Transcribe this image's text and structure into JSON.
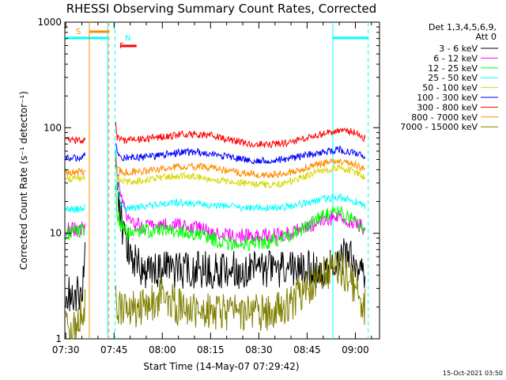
{
  "chart_data": {
    "type": "line",
    "title": "RHESSI Observing Summary Count Rates, Corrected",
    "xlabel": "Start Time (14-May-07 07:29:42)",
    "ylabel": "Corrected Count Rate (s⁻¹ detector⁻¹)",
    "yscale": "log",
    "ylim": [
      1,
      1000
    ],
    "xlim": [
      "07:29:42",
      "09:07:30"
    ],
    "x_ticks": [
      "07:30",
      "07:45",
      "08:00",
      "08:15",
      "08:30",
      "08:45",
      "09:00"
    ],
    "y_ticks": [
      "1",
      "10",
      "100",
      "1000"
    ],
    "grid": false,
    "legend_header": [
      "Det 1,3,4,5,6,9,",
      "Att 0"
    ],
    "legend_position": "right",
    "footer": "15-Oct-2021 03:50",
    "x_unit": "minutes from 07:30",
    "series": [
      {
        "name": "3 - 6 keV",
        "color": "#000000",
        "x": [
          0,
          5,
          6,
          10,
          13,
          15.5,
          16,
          17,
          18,
          20,
          22,
          25,
          30,
          40,
          50,
          55,
          60,
          65,
          70,
          75,
          80,
          85,
          86,
          90,
          92,
          93
        ],
        "y": [
          2.6,
          2.8,
          5.5,
          null,
          null,
          50,
          25,
          15,
          10,
          7,
          5,
          4.5,
          4.5,
          4.5,
          4.5,
          4.5,
          4.5,
          4.5,
          4.5,
          4.5,
          4.5,
          5.5,
          6,
          5.5,
          4,
          3
        ]
      },
      {
        "name": "6 - 12 keV",
        "color": "#ff00ff",
        "x": [
          0,
          5,
          6,
          10,
          13,
          15.5,
          16,
          17,
          18,
          19,
          20,
          22,
          25,
          30,
          35,
          40,
          45,
          50,
          55,
          60,
          65,
          70,
          75,
          80,
          85,
          90,
          93
        ],
        "y": [
          11,
          11,
          12,
          null,
          null,
          60,
          35,
          25,
          18,
          15,
          13,
          12,
          11.5,
          12,
          12,
          11.5,
          10.5,
          9.5,
          9.5,
          9.5,
          9.5,
          10,
          11.5,
          13.5,
          14,
          12.5,
          11
        ]
      },
      {
        "name": "12 - 25 keV",
        "color": "#00ff00",
        "x": [
          0,
          5,
          6,
          10,
          13,
          15.5,
          16,
          17,
          18,
          20,
          25,
          30,
          35,
          40,
          45,
          50,
          55,
          60,
          65,
          70,
          75,
          80,
          85,
          90,
          93
        ],
        "y": [
          10,
          10.5,
          11,
          null,
          null,
          25,
          15,
          12,
          11,
          10,
          10.5,
          11,
          10.5,
          10,
          9,
          8,
          8,
          8,
          8.5,
          9.5,
          12,
          15,
          16,
          13,
          11
        ]
      },
      {
        "name": "25 - 50 keV",
        "color": "#00ffff",
        "x": [
          0,
          5,
          6,
          10,
          13,
          15.5,
          16,
          17,
          18,
          20,
          25,
          30,
          35,
          40,
          45,
          50,
          55,
          60,
          65,
          70,
          75,
          80,
          85,
          90,
          93
        ],
        "y": [
          17,
          17,
          18,
          null,
          null,
          60,
          27,
          20,
          18,
          17,
          18,
          19,
          19.5,
          19,
          18.5,
          18,
          17.5,
          17.5,
          17.5,
          18,
          19.5,
          21,
          22,
          20,
          18
        ]
      },
      {
        "name": "50 - 100 keV",
        "color": "#d8d800",
        "x": [
          0,
          5,
          6,
          10,
          13,
          15.5,
          16,
          18,
          20,
          25,
          30,
          35,
          40,
          45,
          50,
          55,
          60,
          65,
          70,
          75,
          80,
          85,
          90,
          93
        ],
        "y": [
          33,
          33,
          34,
          null,
          null,
          45,
          33,
          31,
          31,
          32,
          34,
          35,
          34,
          33,
          31,
          30,
          29,
          29,
          31,
          35,
          40,
          42,
          38,
          34
        ]
      },
      {
        "name": "100 - 300 keV",
        "color": "#0000ff",
        "x": [
          0,
          5,
          6,
          10,
          13,
          15.5,
          16,
          18,
          20,
          25,
          30,
          35,
          40,
          45,
          50,
          55,
          60,
          65,
          70,
          75,
          80,
          85,
          90,
          93
        ],
        "y": [
          52,
          52,
          55,
          null,
          null,
          75,
          55,
          52,
          52,
          53,
          55,
          58,
          59,
          57,
          53,
          50,
          49,
          49,
          51,
          55,
          59,
          62,
          58,
          53
        ]
      },
      {
        "name": "300 - 800 keV",
        "color": "#ff0000",
        "x": [
          0,
          5,
          6,
          10,
          13,
          15.5,
          16,
          18,
          20,
          25,
          30,
          35,
          40,
          45,
          50,
          55,
          60,
          65,
          70,
          75,
          80,
          85,
          90,
          93
        ],
        "y": [
          76,
          76,
          80,
          null,
          null,
          115,
          82,
          76,
          76,
          78,
          82,
          86,
          87,
          84,
          78,
          72,
          70,
          70,
          73,
          80,
          88,
          95,
          90,
          78
        ]
      },
      {
        "name": "800 - 7000 keV",
        "color": "#ff8c00",
        "x": [
          0,
          5,
          6,
          10,
          13,
          15.5,
          16,
          18,
          20,
          25,
          30,
          35,
          40,
          45,
          50,
          55,
          60,
          65,
          70,
          75,
          80,
          85,
          90,
          93
        ],
        "y": [
          38,
          38,
          40,
          null,
          null,
          55,
          40,
          38,
          38,
          39,
          41,
          43,
          43,
          42,
          39,
          37,
          36,
          36,
          38,
          42,
          46,
          48,
          45,
          40
        ]
      },
      {
        "name": "7000 - 15000 keV",
        "color": "#808000",
        "x": [
          0,
          1,
          5,
          6,
          10,
          13,
          15.5,
          16,
          18,
          20,
          25,
          30,
          35,
          40,
          45,
          50,
          55,
          60,
          65,
          70,
          75,
          80,
          85,
          90,
          93
        ],
        "y": [
          1.8,
          1,
          1.9,
          2,
          null,
          null,
          3.2,
          2,
          1.8,
          1.9,
          2,
          2.6,
          2,
          1.9,
          1.8,
          1.8,
          1.8,
          1.8,
          1.8,
          2.2,
          3,
          4,
          5,
          3,
          2
        ]
      }
    ],
    "annotations": {
      "intervals": [
        {
          "label": "S",
          "color": "#ff8c00"
        },
        {
          "label": "F",
          "color": "#ff0000"
        },
        {
          "label": "N",
          "color": "#00ffff"
        }
      ]
    }
  }
}
